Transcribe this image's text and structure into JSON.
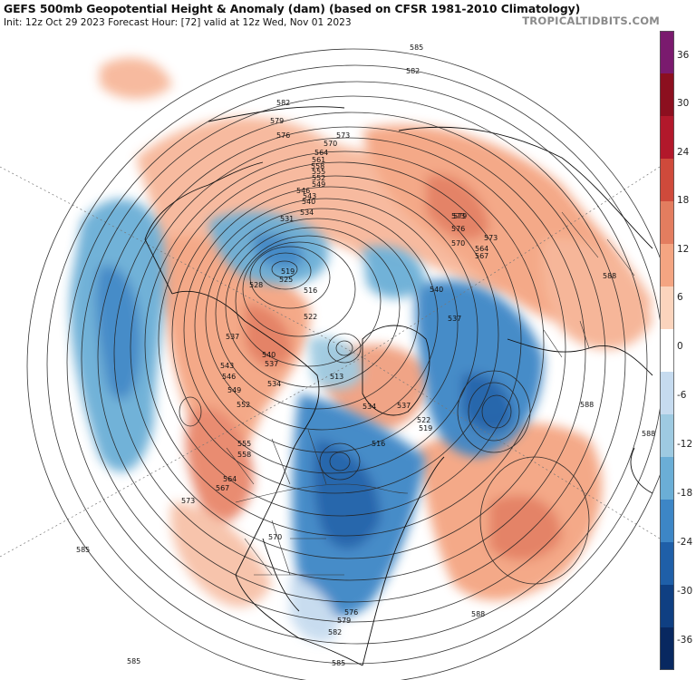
{
  "header": {
    "title": "GEFS 500mb Geopotential Height & Anomaly (dam) (based on CFSR 1981-2010 Climatology)",
    "subtitle": "Init: 12z Oct 29 2023   Forecast Hour: [72]   valid at 12z Wed, Nov 01 2023",
    "brand": "TROPICALTIDBITS.COM"
  },
  "colorbar": {
    "ticks": [
      "36",
      "30",
      "24",
      "18",
      "12",
      "6",
      "0",
      "-6",
      "-12",
      "-18",
      "-24",
      "-30",
      "-36"
    ],
    "colors": [
      "#7a1a6e",
      "#8c0f1f",
      "#b2182b",
      "#cf4a3b",
      "#e37d5f",
      "#f4a582",
      "#fbd4bd",
      "#ffffff",
      "#c6dbef",
      "#9ecae1",
      "#6baed6",
      "#3d86c6",
      "#1f5fa8",
      "#0f3f82",
      "#082860"
    ]
  },
  "contour_labels": [
    "585",
    "582",
    "582",
    "579",
    "576",
    "573",
    "570",
    "564",
    "561",
    "558",
    "555",
    "552",
    "549",
    "546",
    "543",
    "540",
    "531",
    "534",
    "519",
    "525",
    "528",
    "522",
    "516",
    "537",
    "540",
    "537",
    "534",
    "543",
    "546",
    "549",
    "552",
    "513",
    "555",
    "558",
    "564",
    "567",
    "570",
    "573",
    "576",
    "579",
    "582",
    "585",
    "588",
    "588",
    "588",
    "588",
    "585",
    "585",
    "573",
    "564",
    "567",
    "570",
    "573",
    "576",
    "579",
    "522",
    "519",
    "516",
    "534",
    "537",
    "540",
    "537"
  ]
}
